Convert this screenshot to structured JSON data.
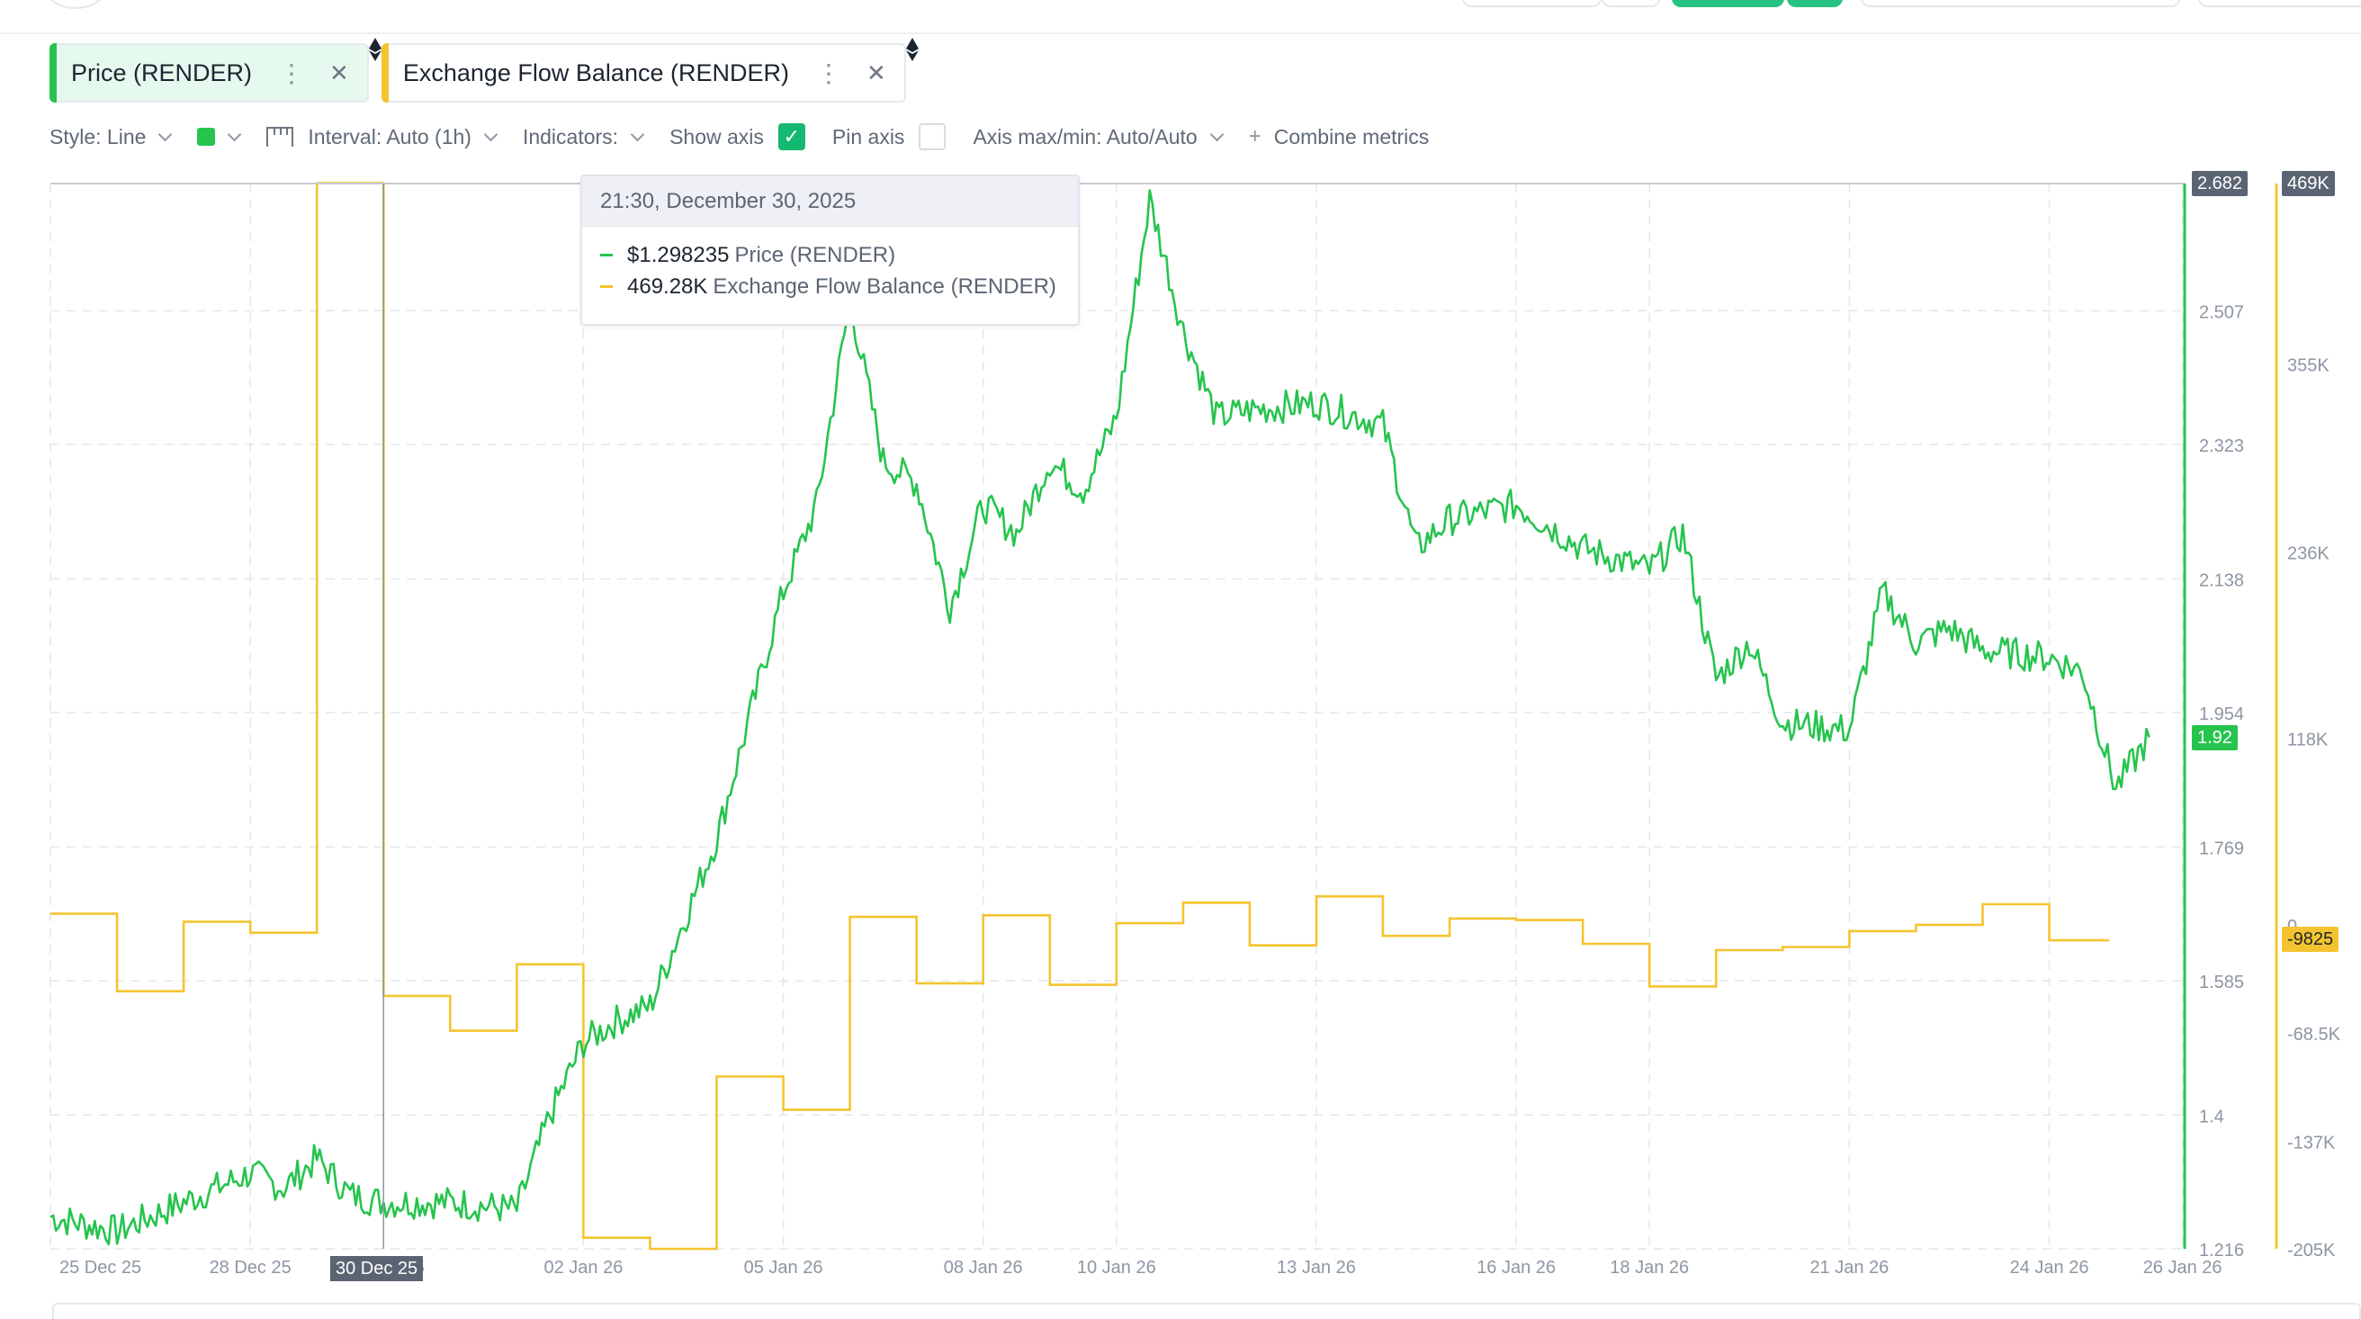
{
  "tabs": [
    {
      "label": "Price (RENDER)",
      "color": "#26c44e",
      "active": true
    },
    {
      "label": "Exchange Flow Balance (RENDER)",
      "color": "#f4c430",
      "active": false
    }
  ],
  "toolbar": {
    "style_label": "Style: Line",
    "interval_label": "Interval: Auto (1h)",
    "indicators_label": "Indicators:",
    "show_axis_label": "Show axis",
    "show_axis_checked": true,
    "pin_axis_label": "Pin axis",
    "pin_axis_checked": false,
    "axis_label": "Axis max/min: Auto/Auto",
    "combine_label": "Combine metrics"
  },
  "tooltip": {
    "time": "21:30, December 30, 2025",
    "rows": [
      {
        "value": "$1.298235",
        "label": "Price (RENDER)",
        "color": "#26c44e"
      },
      {
        "value": "469.28K",
        "label": "Exchange Flow Balance (RENDER)",
        "color": "#f4c430"
      }
    ]
  },
  "chart_data": {
    "type": "line",
    "x_ticks": [
      "25 Dec 25",
      "28 Dec 25",
      "30 Dec 25",
      "02 Jan 26",
      "05 Jan 26",
      "08 Jan 26",
      "10 Jan 26",
      "13 Jan 26",
      "16 Jan 26",
      "18 Jan 26",
      "21 Jan 26",
      "24 Jan 26",
      "26 Jan 26"
    ],
    "crosshair_x_label": "30 Dec 25",
    "price_axis": {
      "ticks": [
        "2.682",
        "2.507",
        "2.323",
        "2.138",
        "1.954",
        "1.769",
        "1.585",
        "1.4",
        "1.216"
      ],
      "ylim": [
        1.216,
        2.682
      ],
      "max_badge": "2.682",
      "current_badge": "1.92"
    },
    "flow_axis": {
      "ticks": [
        "469K",
        "355K",
        "236K",
        "118K",
        "0",
        "-68.5K",
        "-137K",
        "-205K"
      ],
      "ylim": [
        -205000,
        469000
      ],
      "max_badge": "469K",
      "current_badge": "-9825"
    },
    "series": [
      {
        "name": "Price (RENDER)",
        "color": "#26c44e",
        "axis": "left",
        "points": [
          [
            "25 Dec 25",
            1.26
          ],
          [
            "26 Dec 25",
            1.24
          ],
          [
            "27 Dec 25",
            1.28
          ],
          [
            "28 Dec 25",
            1.32
          ],
          [
            "28 Dec 25",
            1.3
          ],
          [
            "29 Dec 25",
            1.34
          ],
          [
            "29 Dec 25",
            1.29
          ],
          [
            "30 Dec 25",
            1.28
          ],
          [
            "31 Dec 25",
            1.28
          ],
          [
            "01 Jan 26",
            1.27
          ],
          [
            "01 Jan 26",
            1.4
          ],
          [
            "02 Jan 26",
            1.5
          ],
          [
            "02 Jan 26",
            1.53
          ],
          [
            "03 Jan 26",
            1.55
          ],
          [
            "04 Jan 26",
            1.78
          ],
          [
            "04 Jan 26",
            1.95
          ],
          [
            "05 Jan 26",
            2.12
          ],
          [
            "05 Jan 26",
            2.24
          ],
          [
            "06 Jan 26",
            2.52
          ],
          [
            "06 Jan 26",
            2.3
          ],
          [
            "07 Jan 26",
            2.27
          ],
          [
            "07 Jan 26",
            2.1
          ],
          [
            "08 Jan 26",
            2.24
          ],
          [
            "08 Jan 26",
            2.2
          ],
          [
            "09 Jan 26",
            2.3
          ],
          [
            "09 Jan 26",
            2.26
          ],
          [
            "10 Jan 26",
            2.36
          ],
          [
            "10 Jan 26",
            2.66
          ],
          [
            "11 Jan 26",
            2.48
          ],
          [
            "11 Jan 26",
            2.36
          ],
          [
            "12 Jan 26",
            2.37
          ],
          [
            "13 Jan 26",
            2.38
          ],
          [
            "14 Jan 26",
            2.35
          ],
          [
            "14 Jan 26",
            2.18
          ],
          [
            "15 Jan 26",
            2.22
          ],
          [
            "16 Jan 26",
            2.24
          ],
          [
            "17 Jan 26",
            2.18
          ],
          [
            "18 Jan 26",
            2.15
          ],
          [
            "18 Jan 26",
            2.2
          ],
          [
            "19 Jan 26",
            2.0
          ],
          [
            "19 Jan 26",
            2.05
          ],
          [
            "20 Jan 26",
            1.94
          ],
          [
            "21 Jan 26",
            1.93
          ],
          [
            "21 Jan 26",
            2.12
          ],
          [
            "22 Jan 26",
            2.05
          ],
          [
            "22 Jan 26",
            2.07
          ],
          [
            "23 Jan 26",
            2.04
          ],
          [
            "24 Jan 26",
            2.03
          ],
          [
            "24 Jan 26",
            2.01
          ],
          [
            "25 Jan 26",
            1.85
          ],
          [
            "25 Jan 26",
            1.92
          ]
        ]
      },
      {
        "name": "Exchange Flow Balance (RENDER)",
        "color": "#f4c430",
        "axis": "right",
        "points": [
          [
            "25 Dec 25",
            7000
          ],
          [
            "26 Dec 25",
            -42000
          ],
          [
            "27 Dec 25",
            2000
          ],
          [
            "28 Dec 25",
            -5000
          ],
          [
            "29 Dec 25",
            469280
          ],
          [
            "30 Dec 25",
            -45000
          ],
          [
            "31 Dec 25",
            -67000
          ],
          [
            "01 Jan 26",
            -25000
          ],
          [
            "02 Jan 26",
            -198000
          ],
          [
            "03 Jan 26",
            -205000
          ],
          [
            "04 Jan 26",
            -96000
          ],
          [
            "05 Jan 26",
            -117000
          ],
          [
            "06 Jan 26",
            5000
          ],
          [
            "07 Jan 26",
            -37000
          ],
          [
            "08 Jan 26",
            6000
          ],
          [
            "09 Jan 26",
            -38000
          ],
          [
            "10 Jan 26",
            1000
          ],
          [
            "11 Jan 26",
            14000
          ],
          [
            "12 Jan 26",
            -13000
          ],
          [
            "13 Jan 26",
            18000
          ],
          [
            "14 Jan 26",
            -7000
          ],
          [
            "15 Jan 26",
            4000
          ],
          [
            "16 Jan 26",
            3000
          ],
          [
            "17 Jan 26",
            -12000
          ],
          [
            "18 Jan 26",
            -39000
          ],
          [
            "19 Jan 26",
            -16000
          ],
          [
            "20 Jan 26",
            -14000
          ],
          [
            "21 Jan 26",
            -4000
          ],
          [
            "22 Jan 26",
            0
          ],
          [
            "23 Jan 26",
            13000
          ],
          [
            "24 Jan 26",
            -9825
          ]
        ]
      }
    ],
    "grid": true,
    "legend": "none"
  }
}
